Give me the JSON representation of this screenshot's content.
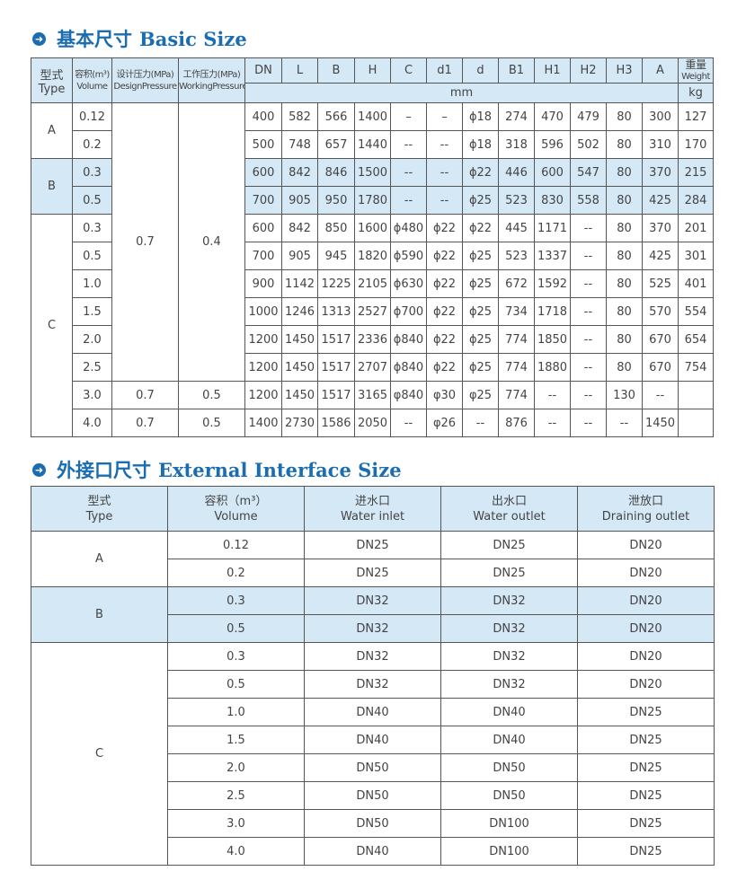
{
  "basic_size": {
    "title_cn": "基本尺寸",
    "title_en": "Basic Size",
    "icon": "arrow-right-circle-icon",
    "headers": [
      {
        "cn": "型式",
        "en": "Type"
      },
      {
        "cn": "容积(m³)",
        "en": "Volume"
      },
      {
        "cn": "设计压力(MPa)",
        "en": "DesignPressure"
      },
      {
        "cn": "工作压力(MPa)",
        "en": "WorkingPressure"
      }
    ],
    "dims": [
      "DN",
      "L",
      "B",
      "H",
      "C",
      "d1",
      "d",
      "B1",
      "H1",
      "H2",
      "H3",
      "A"
    ],
    "unit_mm": "mm",
    "weight_cn": "重量",
    "weight_en": "Weight",
    "unit_kg": "kg",
    "rows": [
      {
        "type": "A",
        "volume": "0.12",
        "design": "0.7",
        "working": "0.4",
        "values": [
          "400",
          "582",
          "566",
          "1400",
          "–",
          "–",
          "ϕ18",
          "274",
          "470",
          "479",
          "80",
          "300",
          "127"
        ]
      },
      {
        "type": "A",
        "volume": "0.2",
        "values": [
          "500",
          "748",
          "657",
          "1440",
          "--",
          "--",
          "ϕ18",
          "318",
          "596",
          "502",
          "80",
          "310",
          "170"
        ]
      },
      {
        "type": "B",
        "volume": "0.3",
        "values": [
          "600",
          "842",
          "846",
          "1500",
          "--",
          "--",
          "ϕ22",
          "446",
          "600",
          "547",
          "80",
          "370",
          "215"
        ]
      },
      {
        "type": "B",
        "volume": "0.5",
        "values": [
          "700",
          "905",
          "950",
          "1780",
          "--",
          "--",
          "ϕ25",
          "523",
          "830",
          "558",
          "80",
          "425",
          "284"
        ]
      },
      {
        "type": "C",
        "volume": "0.3",
        "values": [
          "600",
          "842",
          "850",
          "1600",
          "ϕ480",
          "ϕ22",
          "ϕ22",
          "445",
          "1171",
          "--",
          "80",
          "370",
          "201"
        ]
      },
      {
        "type": "C",
        "volume": "0.5",
        "values": [
          "700",
          "905",
          "945",
          "1820",
          "ϕ590",
          "ϕ22",
          "ϕ25",
          "523",
          "1337",
          "--",
          "80",
          "425",
          "301"
        ]
      },
      {
        "type": "C",
        "volume": "1.0",
        "values": [
          "900",
          "1142",
          "1225",
          "2105",
          "ϕ630",
          "ϕ22",
          "ϕ25",
          "672",
          "1592",
          "--",
          "80",
          "525",
          "401"
        ]
      },
      {
        "type": "C",
        "volume": "1.5",
        "values": [
          "1000",
          "1246",
          "1313",
          "2527",
          "ϕ700",
          "ϕ22",
          "ϕ25",
          "734",
          "1718",
          "--",
          "80",
          "570",
          "554"
        ]
      },
      {
        "type": "C",
        "volume": "2.0",
        "values": [
          "1200",
          "1450",
          "1517",
          "2336",
          "ϕ840",
          "ϕ22",
          "ϕ25",
          "774",
          "1850",
          "--",
          "80",
          "670",
          "654"
        ]
      },
      {
        "type": "C",
        "volume": "2.5",
        "values": [
          "1200",
          "1450",
          "1517",
          "2707",
          "ϕ840",
          "ϕ22",
          "ϕ25",
          "774",
          "1880",
          "--",
          "80",
          "670",
          "754"
        ]
      },
      {
        "type": "C",
        "volume": "3.0",
        "design": "0.7",
        "working": "0.5",
        "values": [
          "1200",
          "1450",
          "1517",
          "3165",
          "φ840",
          "φ30",
          "φ25",
          "774",
          "--",
          "--",
          "130",
          "--",
          ""
        ]
      },
      {
        "type": "C",
        "volume": "4.0",
        "design": "0.7",
        "working": "0.5",
        "values": [
          "1400",
          "2730",
          "1586",
          "2050",
          "--",
          "φ26",
          "--",
          "876",
          "--",
          "--",
          "--",
          "1450",
          ""
        ]
      }
    ]
  },
  "interface_size": {
    "title_cn": "外接口尺寸",
    "title_en": "External Interface Size",
    "icon": "arrow-right-circle-icon",
    "headers": [
      {
        "cn": "型式",
        "en": "Type"
      },
      {
        "cn": "容积（m³）",
        "en": "Volume"
      },
      {
        "cn": "进水口",
        "en": "Water inlet"
      },
      {
        "cn": "出水口",
        "en": "Water outlet"
      },
      {
        "cn": "泄放口",
        "en": "Draining outlet"
      }
    ],
    "rows": [
      {
        "type": "A",
        "volume": "0.12",
        "values": [
          "DN25",
          "DN25",
          "DN20"
        ]
      },
      {
        "type": "A",
        "volume": "0.2",
        "values": [
          "DN25",
          "DN25",
          "DN20"
        ]
      },
      {
        "type": "B",
        "volume": "0.3",
        "values": [
          "DN32",
          "DN32",
          "DN20"
        ]
      },
      {
        "type": "B",
        "volume": "0.5",
        "values": [
          "DN32",
          "DN32",
          "DN20"
        ]
      },
      {
        "type": "C",
        "volume": "0.3",
        "values": [
          "DN32",
          "DN32",
          "DN20"
        ]
      },
      {
        "type": "C",
        "volume": "0.5",
        "values": [
          "DN32",
          "DN32",
          "DN20"
        ]
      },
      {
        "type": "C",
        "volume": "1.0",
        "values": [
          "DN40",
          "DN40",
          "DN25"
        ]
      },
      {
        "type": "C",
        "volume": "1.5",
        "values": [
          "DN40",
          "DN40",
          "DN25"
        ]
      },
      {
        "type": "C",
        "volume": "2.0",
        "values": [
          "DN50",
          "DN50",
          "DN25"
        ]
      },
      {
        "type": "C",
        "volume": "2.5",
        "values": [
          "DN50",
          "DN50",
          "DN25"
        ]
      },
      {
        "type": "C",
        "volume": "3.0",
        "values": [
          "DN50",
          "DN100",
          "DN25"
        ]
      },
      {
        "type": "C",
        "volume": "4.0",
        "values": [
          "DN40",
          "DN100",
          "DN25"
        ]
      }
    ]
  }
}
